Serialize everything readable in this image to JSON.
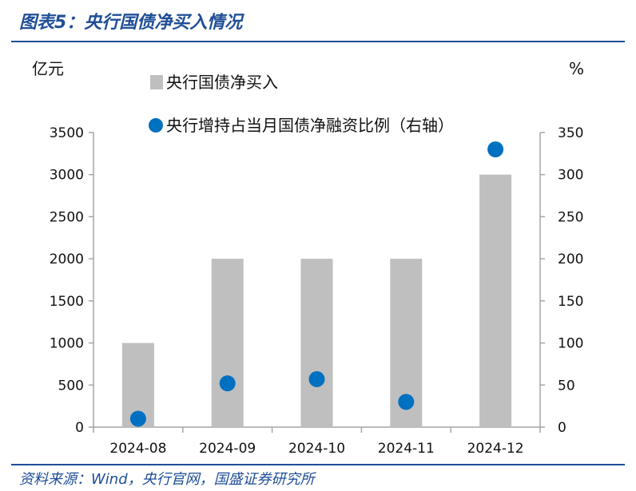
{
  "figure": {
    "title": "图表5：央行国债净买入情况",
    "source": "资料来源：Wind，央行官网，国盛证券研究所"
  },
  "chart_data": {
    "type": "bar",
    "categories": [
      "2024-08",
      "2024-09",
      "2024-10",
      "2024-11",
      "2024-12"
    ],
    "series": [
      {
        "name": "央行国债净买入",
        "type": "bar",
        "axis": "left",
        "values": [
          1000,
          2000,
          2000,
          2000,
          3000
        ],
        "color": "#bfbfbf"
      },
      {
        "name": "央行增持占当月国债净融资比例（右轴）",
        "type": "scatter",
        "axis": "right",
        "values": [
          10,
          52,
          57,
          30,
          330
        ],
        "color": "#0070c0"
      }
    ],
    "y_left": {
      "unit": "亿元",
      "ylim": [
        0,
        3500
      ],
      "ticks": [
        "0",
        "500",
        "1000",
        "1500",
        "2000",
        "2500",
        "3000",
        "3500"
      ]
    },
    "y_right": {
      "unit": "%",
      "ylim": [
        0,
        350
      ],
      "ticks": [
        "0",
        "50",
        "100",
        "150",
        "200",
        "250",
        "300",
        "350"
      ]
    },
    "legend_position": "top-center",
    "grid": false
  }
}
